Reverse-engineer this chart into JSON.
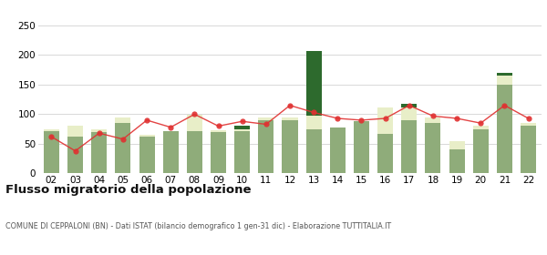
{
  "years": [
    "02",
    "03",
    "04",
    "05",
    "06",
    "07",
    "08",
    "09",
    "10",
    "11",
    "12",
    "13",
    "14",
    "15",
    "16",
    "17",
    "18",
    "19",
    "20",
    "21",
    "22"
  ],
  "iscritti_altri_comuni": [
    72,
    62,
    70,
    85,
    62,
    72,
    72,
    70,
    72,
    90,
    90,
    75,
    78,
    88,
    67,
    90,
    85,
    40,
    75,
    150,
    80
  ],
  "iscritti_estero": [
    3,
    18,
    5,
    10,
    3,
    0,
    27,
    3,
    3,
    5,
    5,
    22,
    0,
    0,
    45,
    22,
    10,
    15,
    5,
    15,
    5
  ],
  "iscritti_altri": [
    0,
    0,
    0,
    0,
    0,
    0,
    0,
    0,
    5,
    0,
    0,
    110,
    0,
    0,
    0,
    5,
    0,
    0,
    0,
    5,
    0
  ],
  "cancellati": [
    62,
    38,
    68,
    58,
    90,
    78,
    100,
    80,
    88,
    83,
    115,
    103,
    93,
    90,
    93,
    115,
    97,
    93,
    85,
    115,
    93
  ],
  "color_altri_comuni": "#8fac7a",
  "color_estero": "#e8eec8",
  "color_altri": "#2d6a2d",
  "color_cancellati": "#e03030",
  "background_color": "#ffffff",
  "grid_color": "#d8d8d8",
  "ylim": [
    0,
    250
  ],
  "yticks": [
    0,
    50,
    100,
    150,
    200,
    250
  ],
  "title": "Flusso migratorio della popolazione",
  "subtitle": "COMUNE DI CEPPALONI (BN) - Dati ISTAT (bilancio demografico 1 gen-31 dic) - Elaborazione TUTTITALIA.IT"
}
